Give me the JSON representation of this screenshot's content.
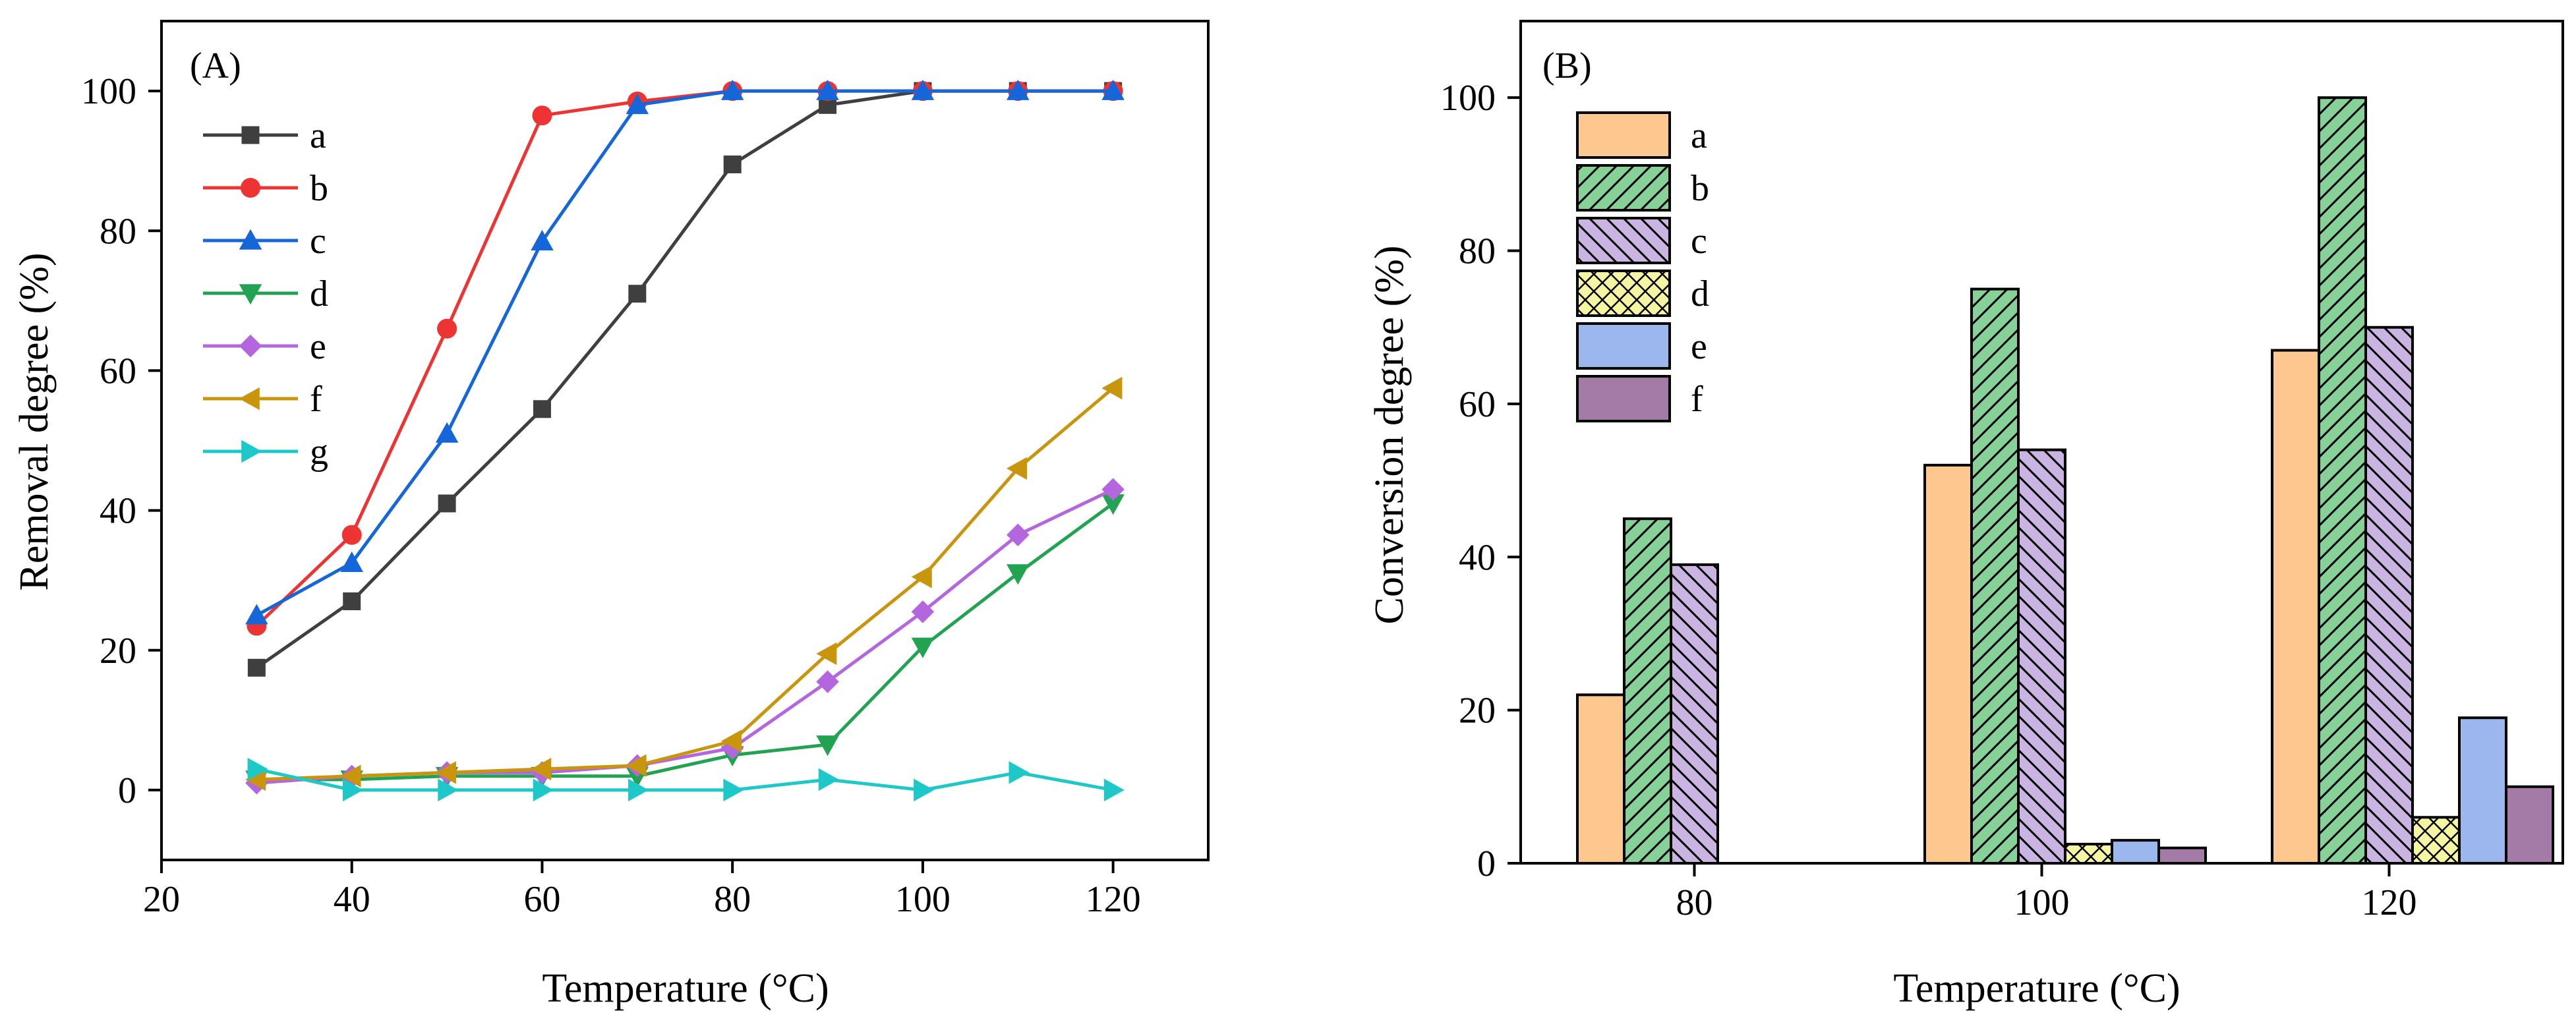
{
  "chart_data": [
    {
      "panel_label": "(A)",
      "type": "line",
      "xlabel": "Temperature (°C)",
      "ylabel": "Removal degree (%)",
      "xlim": [
        20,
        130
      ],
      "ylim": [
        -10,
        110
      ],
      "xticks": [
        20,
        40,
        60,
        80,
        100,
        120
      ],
      "yticks": [
        0,
        20,
        40,
        60,
        80,
        100
      ],
      "grid": false,
      "legend_position": "top-left",
      "series": [
        {
          "name": "a",
          "color": "#3f3f3f",
          "marker": "square",
          "x": [
            30,
            40,
            50,
            60,
            70,
            80,
            90,
            100,
            110,
            120
          ],
          "y": [
            17.5,
            27,
            41,
            54.5,
            71,
            89.5,
            98,
            100,
            100,
            100
          ]
        },
        {
          "name": "b",
          "color": "#ee3333",
          "marker": "circle",
          "x": [
            30,
            40,
            50,
            60,
            70,
            80,
            90,
            100,
            110,
            120
          ],
          "y": [
            23.5,
            36.5,
            66,
            96.5,
            98.5,
            100,
            100,
            100,
            100,
            100
          ]
        },
        {
          "name": "c",
          "color": "#1566d8",
          "marker": "triangle-up",
          "x": [
            30,
            40,
            50,
            60,
            70,
            80,
            90,
            100,
            110,
            120
          ],
          "y": [
            25,
            32.5,
            51,
            78.5,
            98,
            100,
            100,
            100,
            100,
            100
          ]
        },
        {
          "name": "d",
          "color": "#22a352",
          "marker": "triangle-down",
          "x": [
            30,
            40,
            50,
            60,
            70,
            80,
            90,
            100,
            110,
            120
          ],
          "y": [
            1.5,
            1.5,
            2,
            2,
            2,
            5,
            6.5,
            20.5,
            31,
            41
          ]
        },
        {
          "name": "e",
          "color": "#b366dd",
          "marker": "diamond",
          "x": [
            30,
            40,
            50,
            60,
            70,
            80,
            90,
            100,
            110,
            120
          ],
          "y": [
            1,
            2,
            2.5,
            2.5,
            3.5,
            6,
            15.5,
            25.5,
            36.5,
            43
          ]
        },
        {
          "name": "f",
          "color": "#c9950d",
          "marker": "triangle-left",
          "x": [
            30,
            40,
            50,
            60,
            70,
            80,
            90,
            100,
            110,
            120
          ],
          "y": [
            1.5,
            2,
            2.5,
            3,
            3.5,
            7,
            19.5,
            30.5,
            46,
            57.5
          ]
        },
        {
          "name": "g",
          "color": "#1ec8c8",
          "marker": "triangle-right",
          "x": [
            30,
            40,
            50,
            60,
            70,
            80,
            90,
            100,
            110,
            120
          ],
          "y": [
            3,
            0,
            0,
            0,
            0,
            0,
            1.5,
            0,
            2.5,
            0
          ]
        }
      ]
    },
    {
      "panel_label": "(B)",
      "type": "bar",
      "xlabel": "Temperature (°C)",
      "ylabel": "Conversion degree (%)",
      "categories": [
        "80",
        "100",
        "120"
      ],
      "ylim": [
        0,
        110
      ],
      "yticks": [
        0,
        20,
        40,
        60,
        80,
        100
      ],
      "grid": false,
      "legend_position": "top-left",
      "series": [
        {
          "name": "a",
          "color": "#fcc88f",
          "pattern": "solid",
          "values": [
            22,
            52,
            67
          ]
        },
        {
          "name": "b",
          "color": "#86d197",
          "pattern": "diagonal",
          "values": [
            45,
            75,
            100
          ]
        },
        {
          "name": "c",
          "color": "#c9b4e2",
          "pattern": "back-diagonal",
          "values": [
            39,
            54,
            70
          ]
        },
        {
          "name": "d",
          "color": "#f6f5a1",
          "pattern": "crosshatch",
          "values": [
            0,
            2.5,
            6
          ]
        },
        {
          "name": "e",
          "color": "#9cb7ee",
          "pattern": "solid",
          "values": [
            0,
            3,
            19
          ]
        },
        {
          "name": "f",
          "color": "#a47aa7",
          "pattern": "solid",
          "values": [
            0,
            2,
            10
          ]
        }
      ]
    }
  ]
}
